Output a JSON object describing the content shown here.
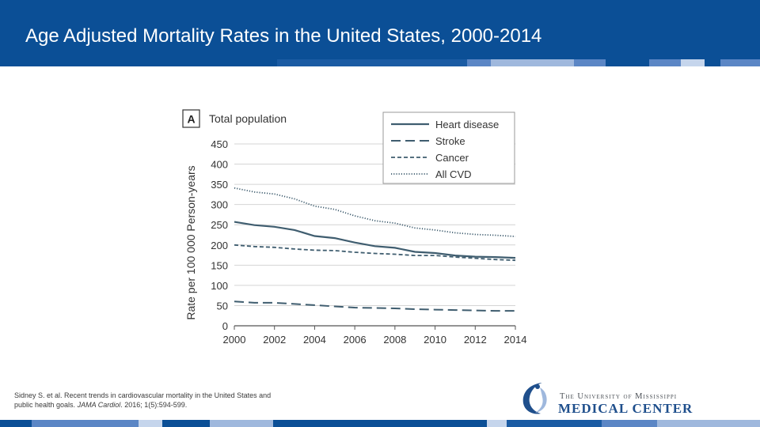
{
  "slide": {
    "title": "Age Adjusted Mortality Rates in the United States, 2000-2014",
    "citation_prefix": "Sidney S. et al. Recent trends in cardiovascular mortality in the United States and public health goals. ",
    "citation_journal": "JAMA Cardiol",
    "citation_suffix": ". 2016; 1(5):594-599.",
    "logo_top": "The University of Mississippi",
    "logo_bottom": "MEDICAL CENTER"
  },
  "colors": {
    "header": "#0b4f96",
    "stripe_light": "#9fb8dd",
    "stripe_mid": "#5b86c5",
    "series_line": "#3f5d6f",
    "grid": "#d4d4d4",
    "logo_blue": "#1f4f8c"
  },
  "chart_data": {
    "type": "line",
    "panel_label": "A",
    "title": "Total population",
    "xlabel": "",
    "ylabel": "Rate per 100 000 Person-years",
    "xlim": [
      2000,
      2014
    ],
    "ylim": [
      0,
      450
    ],
    "x_ticks": [
      2000,
      2002,
      2004,
      2006,
      2008,
      2010,
      2012,
      2014
    ],
    "y_ticks": [
      0,
      50,
      100,
      150,
      200,
      250,
      300,
      350,
      400,
      450
    ],
    "grid": true,
    "legend_position": "top-right",
    "x": [
      2000,
      2001,
      2002,
      2003,
      2004,
      2005,
      2006,
      2007,
      2008,
      2009,
      2010,
      2011,
      2012,
      2013,
      2014
    ],
    "series": [
      {
        "name": "Heart disease",
        "style": "solid",
        "values": [
          257,
          249,
          245,
          237,
          222,
          217,
          206,
          197,
          193,
          183,
          180,
          174,
          171,
          170,
          168
        ]
      },
      {
        "name": "Stroke",
        "style": "dashed",
        "values": [
          60,
          57,
          57,
          54,
          51,
          48,
          45,
          44,
          43,
          41,
          40,
          39,
          38,
          37,
          37
        ]
      },
      {
        "name": "Cancer",
        "style": "short-dashed",
        "values": [
          200,
          196,
          194,
          190,
          187,
          186,
          182,
          179,
          177,
          174,
          174,
          170,
          167,
          164,
          162
        ]
      },
      {
        "name": "All CVD",
        "style": "dotted",
        "values": [
          341,
          331,
          326,
          314,
          296,
          288,
          272,
          260,
          254,
          242,
          237,
          230,
          226,
          224,
          221
        ]
      }
    ]
  }
}
